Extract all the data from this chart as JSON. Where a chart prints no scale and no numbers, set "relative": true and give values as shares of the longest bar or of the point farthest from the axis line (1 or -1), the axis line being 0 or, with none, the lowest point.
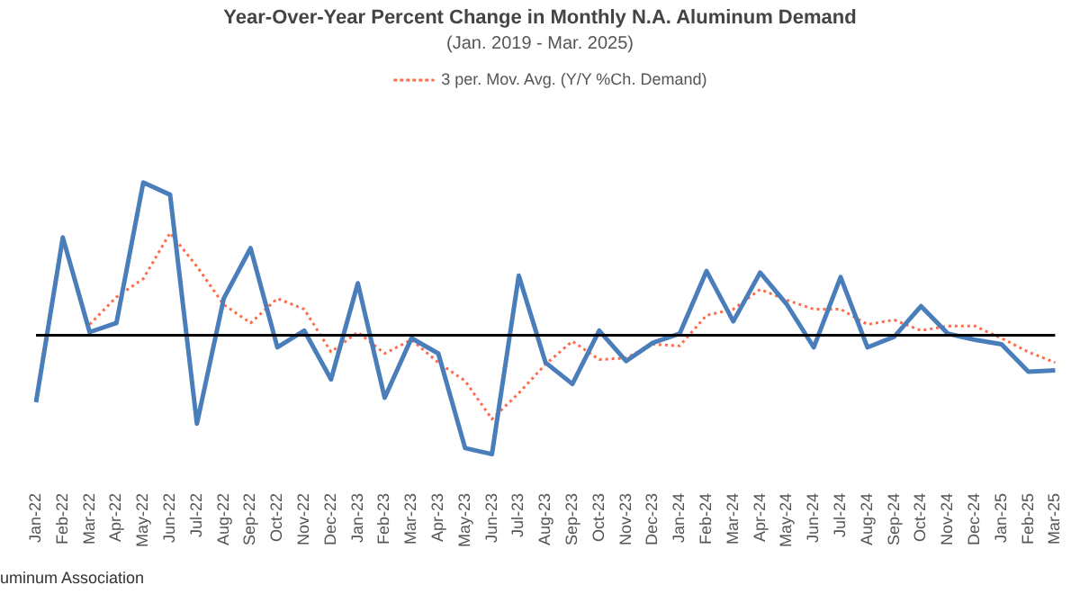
{
  "chart_data": {
    "type": "line",
    "title": "Year-Over-Year Percent Change in Monthly N.A. Aluminum Demand",
    "subtitle": "(Jan. 2019 - Mar. 2025)",
    "relative": true,
    "legend": "top",
    "line_style": "solid",
    "marker": "none",
    "categories": [
      "Jan-22",
      "Feb-22",
      "Mar-22",
      "Apr-22",
      "May-22",
      "Jun-22",
      "Jul-22",
      "Aug-22",
      "Sep-22",
      "Oct-22",
      "Nov-22",
      "Dec-22",
      "Jan-23",
      "Feb-23",
      "Mar-23",
      "Apr-23",
      "May-23",
      "Jun-23",
      "Jul-23",
      "Aug-23",
      "Sep-23",
      "Oct-23",
      "Nov-23",
      "Dec-23",
      "Jan-24",
      "Feb-24",
      "Mar-24",
      "Apr-24",
      "May-24",
      "Jun-24",
      "Jul-24",
      "Aug-24",
      "Sep-24",
      "Oct-24",
      "Nov-24",
      "Dec-24",
      "Jan-25",
      "Feb-25",
      "Mar-25"
    ],
    "series": [
      {
        "color": "#4a7ebb",
        "values": [
          -0.44,
          0.64,
          0.02,
          0.08,
          1,
          0.92,
          -0.58,
          0.24,
          0.57,
          -0.08,
          0.03,
          -0.29,
          0.34,
          -0.41,
          -0.02,
          -0.12,
          -0.74,
          -0.78,
          0.39,
          -0.18,
          -0.32,
          0.03,
          -0.17,
          -0.05,
          0.01,
          0.42,
          0.09,
          0.41,
          0.2,
          -0.08,
          0.38,
          -0.08,
          -0.01,
          0.19,
          0.01,
          -0.03,
          -0.06,
          -0.24,
          -0.23
        ]
      },
      {
        "name": "3 per. Mov. Avg. (Y/Y %Ch. Demand)",
        "color": "#ff6b4a",
        "line_style": "dotted",
        "values": [
          null,
          null,
          0.07,
          0.25,
          0.37,
          0.67,
          0.45,
          0.2,
          0.08,
          0.24,
          0.17,
          -0.11,
          0.02,
          -0.12,
          -0.03,
          -0.18,
          -0.3,
          -0.55,
          -0.38,
          -0.19,
          -0.04,
          -0.16,
          -0.15,
          -0.06,
          -0.07,
          0.13,
          0.17,
          0.3,
          0.23,
          0.17,
          0.17,
          0.07,
          0.1,
          0.03,
          0.06,
          0.06,
          -0.02,
          -0.11,
          -0.18
        ]
      }
    ],
    "annotations": [
      "uminum Association"
    ]
  }
}
